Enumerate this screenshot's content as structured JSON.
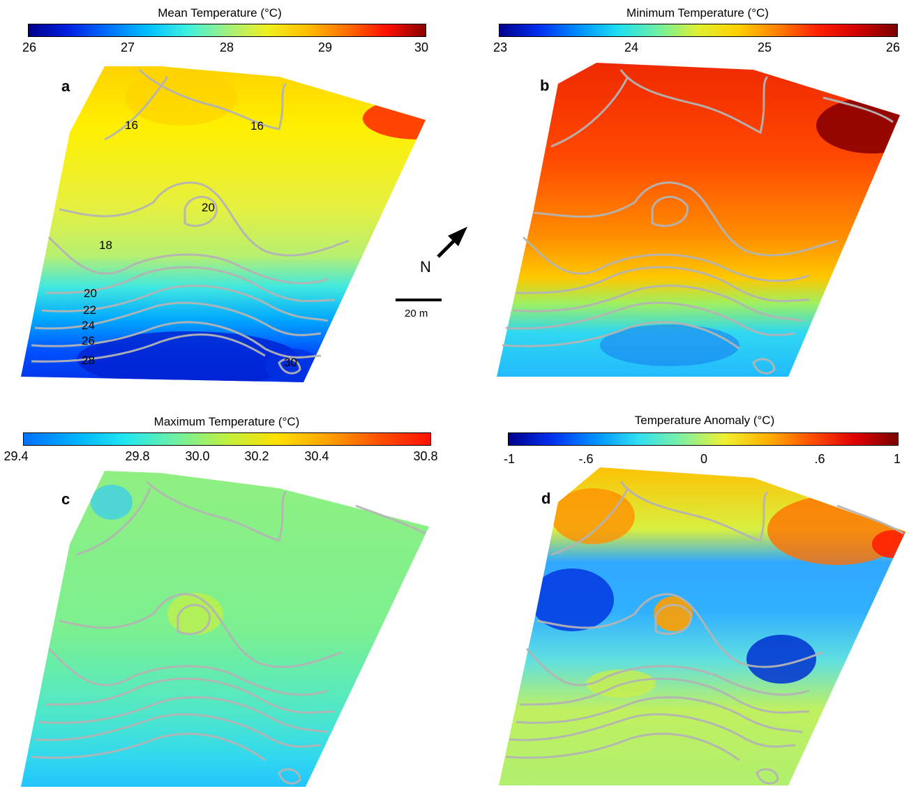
{
  "colorbars": {
    "mean": {
      "title": "Mean Temperature (°C)",
      "ticks": [
        "26",
        "27",
        "28",
        "29",
        "30"
      ],
      "colors": [
        "#00008b",
        "#0020e0",
        "#0070ff",
        "#00c0ff",
        "#40f0e0",
        "#a0f080",
        "#f0f020",
        "#ffc000",
        "#ff7000",
        "#ff1000",
        "#8b0000"
      ]
    },
    "min": {
      "title": "Minimum Temperature (°C)",
      "ticks": [
        "23",
        "24",
        "25",
        "26"
      ],
      "colors": [
        "#00008b",
        "#0030f0",
        "#0090ff",
        "#20e0f0",
        "#70f0a0",
        "#e0f030",
        "#ffd000",
        "#ff8000",
        "#ff2000",
        "#d00000",
        "#7a0000"
      ]
    },
    "max": {
      "title": "Maximum Temperature (°C)",
      "ticks": [
        "29.4",
        "29.8",
        "30.0",
        "30.2",
        "30.4",
        "30.8"
      ],
      "colors": [
        "#0070ff",
        "#00b0ff",
        "#20e8f0",
        "#70f0a0",
        "#c0f040",
        "#ffe000",
        "#ffa000",
        "#ff5000",
        "#ff1000"
      ]
    },
    "anom": {
      "title": "Temperature Anomaly (°C)",
      "ticks": [
        "-1",
        "-.6",
        "0",
        ".6",
        "1"
      ],
      "colors": [
        "#00008b",
        "#0030f0",
        "#0090ff",
        "#30e0f0",
        "#80f0a0",
        "#f0f030",
        "#ffb000",
        "#ff5000",
        "#e00000",
        "#7a0000"
      ]
    }
  },
  "panels": {
    "a": {
      "letter": "a",
      "contour_labels": [
        "16",
        "16",
        "20",
        "18",
        "20",
        "22",
        "24",
        "26",
        "28",
        "30"
      ]
    },
    "b": {
      "letter": "b"
    },
    "c": {
      "letter": "c"
    },
    "d": {
      "letter": "d"
    }
  },
  "north_arrow": {
    "label": "N"
  },
  "scale_bar": {
    "label": "20 m"
  }
}
